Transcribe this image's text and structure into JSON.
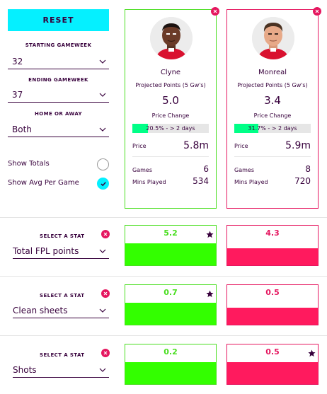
{
  "controls": {
    "reset_label": "RESET",
    "starting_gameweek": {
      "label": "STARTING GAMEWEEK",
      "value": "32"
    },
    "ending_gameweek": {
      "label": "ENDING GAMEWEEK",
      "value": "37"
    },
    "home_or_away": {
      "label": "HOME OR AWAY",
      "value": "Both"
    },
    "show_totals": {
      "label": "Show Totals",
      "checked": false
    },
    "show_avg": {
      "label": "Show Avg Per Game",
      "checked": true
    }
  },
  "players": [
    {
      "name": "Clyne",
      "projected_label": "Projected Points (5 Gw's)",
      "projected": "5.0",
      "price_change_label": "Price Change",
      "price_change_text": "20.5% - > 2 days",
      "price_change_pct": 20.5,
      "price_label": "Price",
      "price": "5.8m",
      "games_label": "Games",
      "games": "6",
      "mins_label": "Mins Played",
      "mins": "534",
      "accent": "#4ade20"
    },
    {
      "name": "Monreal",
      "projected_label": "Projected Points (5 Gw's)",
      "projected": "3.4",
      "price_change_label": "Price Change",
      "price_change_text": "31.7% - > 2 days",
      "price_change_pct": 31.7,
      "price_label": "Price",
      "price": "5.9m",
      "games_label": "Games",
      "games": "8",
      "mins_label": "Mins Played",
      "mins": "720",
      "accent": "#e5165f"
    }
  ],
  "stats": [
    {
      "label": "SELECT A STAT",
      "value": "Total FPL points",
      "p1": "5.2",
      "p2": "4.3",
      "p1_fill_pct": 100,
      "p2_fill_pct": 45,
      "winner": "p1"
    },
    {
      "label": "SELECT A STAT",
      "value": "Clean sheets",
      "p1": "0.7",
      "p2": "0.5",
      "p1_fill_pct": 100,
      "p2_fill_pct": 45,
      "winner": "p1"
    },
    {
      "label": "SELECT A STAT",
      "value": "Shots",
      "p1": "0.2",
      "p2": "0.5",
      "p1_fill_pct": 100,
      "p2_fill_pct": 100,
      "winner": "p2"
    }
  ],
  "colors": {
    "green": "#4ade20",
    "green_fill": "#33ff00",
    "pink": "#e5165f",
    "pink_fill": "#ff1a5e",
    "cyan": "#05f0ff",
    "purple": "#37003c"
  }
}
